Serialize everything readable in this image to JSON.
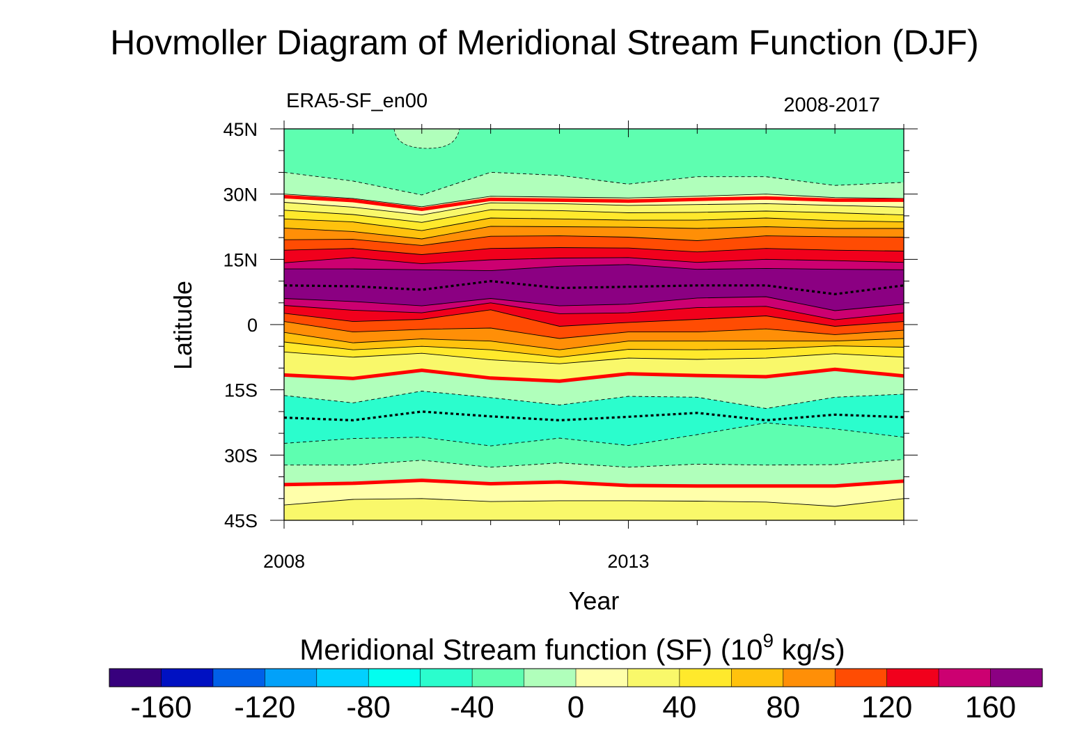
{
  "chart_data": {
    "type": "heatmap",
    "title": "Hovmoller Diagram of Meridional Stream Function (DJF)",
    "left_subtitle": "ERA5-SF_en00",
    "right_subtitle": "2008-2017",
    "xlabel": "Year",
    "ylabel": "Latitude",
    "xlim": [
      2008,
      2017
    ],
    "ylim": [
      -45,
      45
    ],
    "x_ticks": [
      {
        "value": 2008,
        "label": "2008"
      },
      {
        "value": 2013,
        "label": "2013"
      }
    ],
    "y_ticks": [
      {
        "value": 45,
        "label": "45N"
      },
      {
        "value": 30,
        "label": "30N"
      },
      {
        "value": 15,
        "label": "15N"
      },
      {
        "value": 0,
        "label": "0"
      },
      {
        "value": -15,
        "label": "15S"
      },
      {
        "value": -30,
        "label": "30S"
      },
      {
        "value": -45,
        "label": "45S"
      }
    ],
    "years": [
      2008,
      2009,
      2010,
      2011,
      2012,
      2013,
      2014,
      2015,
      2016,
      2017
    ],
    "band_note": "Each band: [lower contour level, upper contour level, fill color]; boundaries give latitude of the lower contour for each year (NaN = open edge).",
    "bands": [
      {
        "lower": 0,
        "upper": 20,
        "color": "#ffffaa",
        "boundary": [
          -36.8,
          -36.5,
          -35.8,
          -36.6,
          -36.2,
          -37,
          -37.1,
          -37.1,
          -37.1,
          -36
        ]
      },
      {
        "lower": 20,
        "upper": 40,
        "color": "#f9f86a",
        "boundary": [
          -41.5,
          -40.2,
          -40,
          -40.7,
          -40.5,
          -40.5,
          -40.6,
          -40.8,
          -41.8,
          -40
        ]
      },
      {
        "lower": -20,
        "upper": 0,
        "color": "#b0ffbb",
        "boundary": [
          -32.3,
          -32.3,
          -31.2,
          -32.8,
          -31.8,
          -32.8,
          -32.1,
          -32.3,
          -32.2,
          -31
        ]
      },
      {
        "lower": -40,
        "upper": -20,
        "color": "#5efeb0",
        "boundary": [
          -27.3,
          -26.2,
          -25.9,
          -27.9,
          -26.1,
          -27.8,
          -25.3,
          -22.6,
          -24,
          -25.9
        ]
      },
      {
        "lower": -60,
        "upper": -40,
        "color": "#2bfdcd",
        "boundary": [
          -16.3,
          -18,
          -15.3,
          -16.8,
          -18.5,
          -16.5,
          -16.7,
          -19.3,
          -16.7,
          -16
        ]
      }
    ],
    "contour_levels": [
      -160,
      -140,
      -120,
      -100,
      -80,
      -60,
      -40,
      -20,
      0,
      20,
      40,
      60,
      80,
      100,
      120,
      140,
      160,
      180
    ],
    "key_lines": [
      {
        "name": "SF = 0 (NH)",
        "lat": [
          29.4,
          28.5,
          26.5,
          28.8,
          28.6,
          28.4,
          28.8,
          29.1,
          28.6,
          28.6
        ]
      },
      {
        "name": "SF = 0 (tropics)",
        "lat": [
          -11.6,
          -12.4,
          -10.5,
          -12.3,
          -13,
          -11.3,
          -11.7,
          -12,
          -10.3,
          -11.8
        ]
      },
      {
        "name": "SF = 0 (SH)",
        "lat": [
          -36.8,
          -36.5,
          -35.8,
          -36.6,
          -36.2,
          -37,
          -37.1,
          -37.1,
          -37.1,
          -36
        ]
      },
      {
        "name": "NH cell maximum",
        "lat": [
          9,
          8.8,
          8,
          10,
          8.4,
          8.7,
          9,
          9,
          7,
          9
        ]
      },
      {
        "name": "SH cell minimum",
        "lat": [
          -21.4,
          -22,
          -20,
          -21.1,
          -22,
          -21.2,
          -20.3,
          -22,
          -20.7,
          -21.3
        ]
      }
    ],
    "colorbar": {
      "label_main": "Meridional Stream function (SF) (10",
      "label_sup": "9",
      "label_end": " kg/s)",
      "colors": [
        "#37007d",
        "#0011c2",
        "#0060e8",
        "#02a1f9",
        "#02d0fe",
        "#03feef",
        "#2bfdcd",
        "#5efeb0",
        "#b0ffbb",
        "#ffffaa",
        "#f9f86a",
        "#ffe92c",
        "#ffc20d",
        "#ff8f07",
        "#ff4c03",
        "#f1001c",
        "#cc0071",
        "#8b0082"
      ],
      "tick_labels": [
        "-160",
        "-120",
        "-80",
        "-40",
        "0",
        "40",
        "80",
        "120",
        "160"
      ]
    }
  }
}
